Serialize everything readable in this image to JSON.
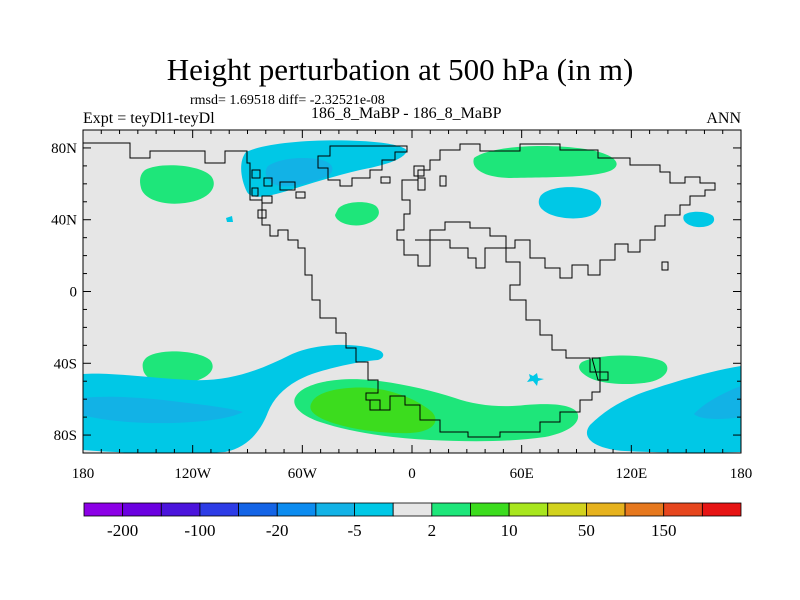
{
  "chart_data": {
    "type": "heatmap",
    "title": "Height perturbation at 500 hPa (in m)",
    "stats_text": "rmsd= 1.69518 diff= -2.32521e-08",
    "left_label": "Expt = teyDl1-teyDl",
    "center_label": "186_8_MaBP - 186_8_MaBP",
    "right_label": "ANN",
    "x_range": [
      -180,
      180
    ],
    "y_range": [
      -90,
      90
    ],
    "x_ticks": [
      {
        "value": -180,
        "label": "180"
      },
      {
        "value": -120,
        "label": "120W"
      },
      {
        "value": -60,
        "label": "60W"
      },
      {
        "value": 0,
        "label": "0"
      },
      {
        "value": 60,
        "label": "60E"
      },
      {
        "value": 120,
        "label": "120E"
      },
      {
        "value": 180,
        "label": "180"
      }
    ],
    "y_ticks": [
      {
        "value": 80,
        "label": "80N"
      },
      {
        "value": 40,
        "label": "40N"
      },
      {
        "value": 0,
        "label": "0"
      },
      {
        "value": -40,
        "label": "40S"
      },
      {
        "value": -80,
        "label": "80S"
      }
    ],
    "colorbar": {
      "colors": [
        "#8c00e6",
        "#6b00e0",
        "#4b14dc",
        "#2d3ce6",
        "#1464e6",
        "#0c8cf0",
        "#12b2e6",
        "#00c8e6",
        "#e6e6e6",
        "#1ee67a",
        "#3cdc1e",
        "#a8e61e",
        "#d2d21e",
        "#e6b21e",
        "#e6781e",
        "#e6461e",
        "#e61414"
      ],
      "labels": [
        {
          "boundary": 1,
          "text": "-200"
        },
        {
          "boundary": 3,
          "text": "-100"
        },
        {
          "boundary": 5,
          "text": "-20"
        },
        {
          "boundary": 7,
          "text": "-5"
        },
        {
          "boundary": 9,
          "text": "2"
        },
        {
          "boundary": 11,
          "text": "10"
        },
        {
          "boundary": 13,
          "text": "50"
        },
        {
          "boundary": 15,
          "text": "150"
        }
      ]
    },
    "regions": [
      {
        "name": "negative-pole-arctic",
        "level": "-5"
      },
      {
        "name": "negative-core-arctic",
        "level": "-20"
      },
      {
        "name": "positive-north-pacific",
        "level": "5"
      },
      {
        "name": "positive-north-atlantic",
        "level": "5"
      },
      {
        "name": "positive-siberia",
        "level": "5"
      },
      {
        "name": "negative-east-europe",
        "level": "-5"
      },
      {
        "name": "negative-north-pacific-east",
        "level": "-5"
      },
      {
        "name": "positive-south-pacific",
        "level": "5"
      },
      {
        "name": "negative-southern-ocean-band",
        "level": "-5"
      },
      {
        "name": "negative-southern-ocean-core",
        "level": "-20"
      },
      {
        "name": "positive-south-atlantic",
        "level": "5"
      },
      {
        "name": "positive-south-atlantic-core",
        "level": "10"
      },
      {
        "name": "positive-south-indian",
        "level": "5"
      },
      {
        "name": "negative-south-indian-small",
        "level": "-5"
      }
    ]
  }
}
